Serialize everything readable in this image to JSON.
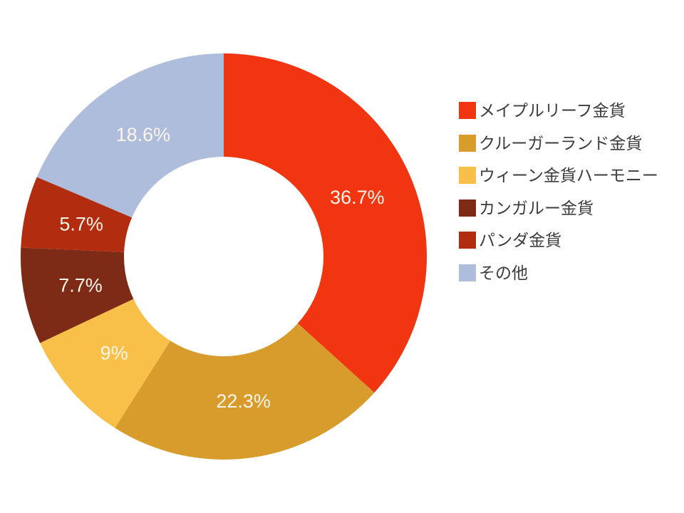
{
  "chart_data": {
    "type": "pie",
    "donut": true,
    "categories": [
      "メイプルリーフ金貨",
      "クルーガーランド金貨",
      "ウィーン金貨ハーモニー",
      "カンガルー金貨",
      "パンダ金貨",
      "その他"
    ],
    "values": [
      36.7,
      22.3,
      9,
      7.7,
      5.7,
      18.6
    ],
    "data_labels": [
      "36.7%",
      "22.3%",
      "9%",
      "7.7%",
      "5.7%",
      "18.6%"
    ],
    "colors": [
      "#F23511",
      "#D89C2C",
      "#F8C049",
      "#7D2B16",
      "#B22D10",
      "#AFBDDC"
    ],
    "label_text_color": "#FBF5E9",
    "legend_text_color": "#3C3C3C",
    "background_color": "#FFFFFF",
    "start_angle_deg": 0,
    "direction": "clockwise",
    "legend_position": "right",
    "grid": false,
    "title": ""
  }
}
